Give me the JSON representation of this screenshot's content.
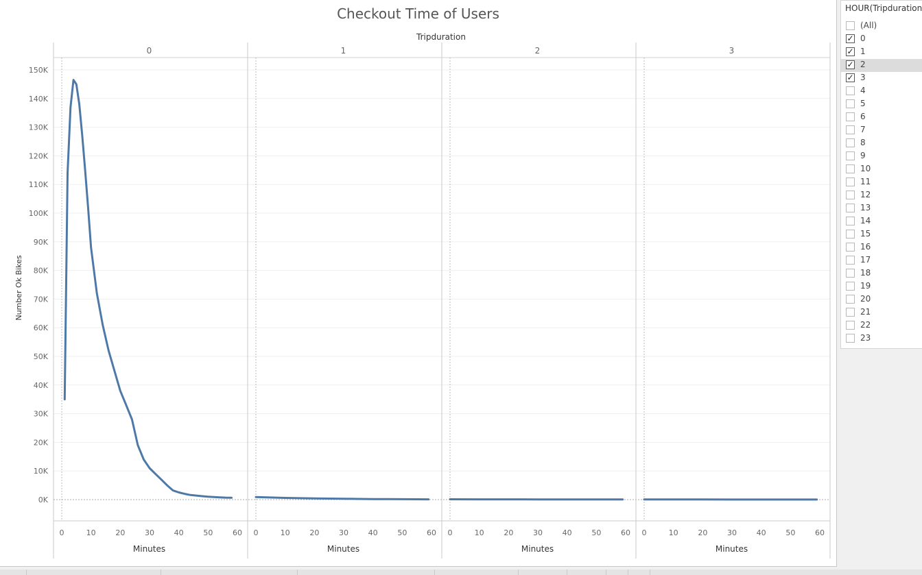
{
  "title": "Checkout Time of Users",
  "chart_data": {
    "type": "line",
    "title": "Checkout Time of Users",
    "column_header": "Tripduration",
    "panels": [
      "0",
      "1",
      "2",
      "3"
    ],
    "xlabel": "Minutes",
    "ylabel": "Number Ok Bikes",
    "xlim": [
      0,
      60
    ],
    "ylim": [
      0,
      150000
    ],
    "x_ticks": [
      0,
      10,
      20,
      30,
      40,
      50,
      60
    ],
    "y_ticks": [
      0,
      10000,
      20000,
      30000,
      40000,
      50000,
      60000,
      70000,
      80000,
      90000,
      100000,
      110000,
      120000,
      130000,
      140000,
      150000
    ],
    "y_tick_labels": [
      "0K",
      "10K",
      "20K",
      "30K",
      "40K",
      "50K",
      "60K",
      "70K",
      "80K",
      "90K",
      "100K",
      "110K",
      "120K",
      "130K",
      "140K",
      "150K"
    ],
    "grid": true,
    "line_color": "#4e79a7",
    "series": [
      {
        "panel": "0",
        "x": [
          1,
          2,
          3,
          4,
          5,
          6,
          7,
          8,
          9,
          10,
          12,
          14,
          16,
          18,
          20,
          22,
          24,
          26,
          28,
          30,
          32,
          34,
          36,
          38,
          40,
          42,
          44,
          46,
          48,
          50,
          52,
          54,
          56,
          58
        ],
        "y": [
          35000,
          114000,
          137000,
          146500,
          145000,
          138000,
          127000,
          115000,
          102000,
          88000,
          72000,
          61000,
          52000,
          45000,
          38000,
          33000,
          28000,
          19000,
          14000,
          11000,
          9000,
          7000,
          5000,
          3200,
          2500,
          2000,
          1600,
          1400,
          1200,
          1000,
          900,
          800,
          700,
          650
        ]
      },
      {
        "panel": "1",
        "x": [
          0,
          5,
          10,
          15,
          20,
          25,
          30,
          35,
          40,
          45,
          50,
          55,
          59
        ],
        "y": [
          900,
          750,
          600,
          500,
          420,
          350,
          300,
          250,
          200,
          170,
          140,
          120,
          100
        ]
      },
      {
        "panel": "2",
        "x": [
          0,
          10,
          20,
          30,
          40,
          50,
          59
        ],
        "y": [
          120,
          100,
          90,
          80,
          70,
          60,
          50
        ]
      },
      {
        "panel": "3",
        "x": [
          0,
          10,
          20,
          30,
          40,
          50,
          59
        ],
        "y": [
          50,
          45,
          40,
          35,
          30,
          25,
          20
        ]
      }
    ]
  },
  "filter": {
    "title": "HOUR(Tripduration)",
    "items": [
      {
        "label": "(All)",
        "checked": false
      },
      {
        "label": "0",
        "checked": true
      },
      {
        "label": "1",
        "checked": true
      },
      {
        "label": "2",
        "checked": true,
        "highlight": true
      },
      {
        "label": "3",
        "checked": true
      },
      {
        "label": "4",
        "checked": false
      },
      {
        "label": "5",
        "checked": false
      },
      {
        "label": "6",
        "checked": false
      },
      {
        "label": "7",
        "checked": false
      },
      {
        "label": "8",
        "checked": false
      },
      {
        "label": "9",
        "checked": false
      },
      {
        "label": "10",
        "checked": false
      },
      {
        "label": "11",
        "checked": false
      },
      {
        "label": "12",
        "checked": false
      },
      {
        "label": "13",
        "checked": false
      },
      {
        "label": "14",
        "checked": false
      },
      {
        "label": "15",
        "checked": false
      },
      {
        "label": "16",
        "checked": false
      },
      {
        "label": "17",
        "checked": false
      },
      {
        "label": "18",
        "checked": false
      },
      {
        "label": "19",
        "checked": false
      },
      {
        "label": "20",
        "checked": false
      },
      {
        "label": "21",
        "checked": false
      },
      {
        "label": "22",
        "checked": false
      },
      {
        "label": "23",
        "checked": false
      }
    ]
  }
}
